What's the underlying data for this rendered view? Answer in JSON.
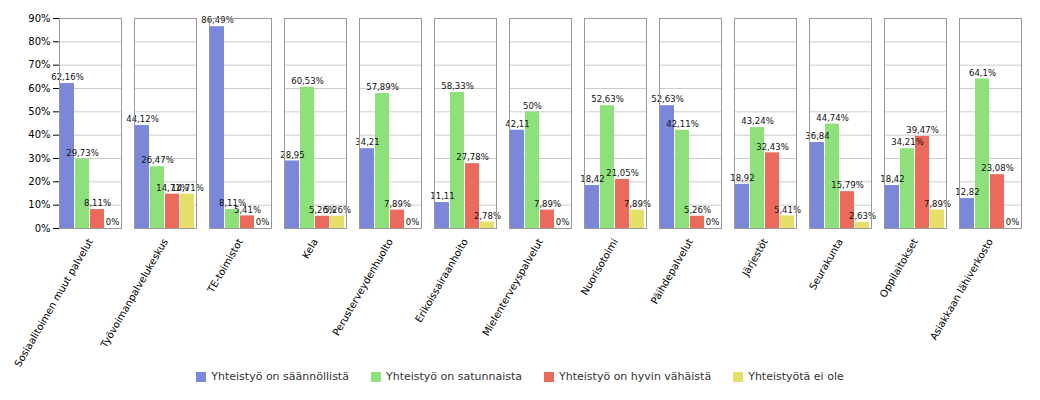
{
  "chart_data": {
    "type": "bar",
    "categories": [
      "Sosiaalitoimen muut palvelut",
      "Työvoimanpalvelukeskus",
      "TE-toimistot",
      "Kela",
      "Perusterveydenhuolto",
      "Erikoissairaanhoito",
      "Mielenterveyspalvelut",
      "Nuorisotoimi",
      "Päihdepalvelut",
      "Järjestöt",
      "Seurakunta",
      "Oppilaitokset",
      "Asiakkaan lähiverkosto"
    ],
    "series": [
      {
        "name": "Yhteistyö on säännöllistä",
        "color": "#7b88da",
        "values": [
          62.16,
          44.12,
          86.49,
          28.95,
          34.21,
          11.11,
          42.11,
          18.42,
          52.63,
          18.92,
          36.84,
          18.42,
          12.82
        ],
        "value_labels": [
          "62,16%",
          "44,12%",
          "86,49%",
          "28,95",
          "34,21",
          "11,11",
          "42,11",
          "18,42",
          "52,63%",
          "18,92",
          "36,84",
          "18,42",
          "12,82"
        ]
      },
      {
        "name": "Yhteistyö on satunnaista",
        "color": "#8ee07a",
        "values": [
          29.73,
          26.47,
          8.11,
          60.53,
          57.89,
          58.33,
          50,
          52.63,
          42.11,
          43.24,
          44.74,
          34.21,
          64.1
        ],
        "value_labels": [
          "29,73%",
          "26,47%",
          "8,11%",
          "60,53%",
          "57,89%",
          "58,33%",
          "50%",
          "52,63%",
          "42,11%",
          "43,24%",
          "44,74%",
          "34,21%",
          "64,1%"
        ]
      },
      {
        "name": "Yhteistyö on hyvin vähäistä",
        "color": "#ec6a5c",
        "values": [
          8.11,
          14.71,
          5.41,
          5.26,
          7.89,
          27.78,
          7.89,
          21.05,
          5.26,
          32.43,
          15.79,
          39.47,
          23.08
        ],
        "value_labels": [
          "8,11%",
          "14,71%",
          "5,41%",
          "5,26%",
          "7,89%",
          "27,78%",
          "7,89%",
          "21,05%",
          "5,26%",
          "32,43%",
          "15,79%",
          "39,47%",
          "23,08%"
        ]
      },
      {
        "name": "Yhteistyötä ei ole",
        "color": "#e6e06a",
        "values": [
          0,
          14.71,
          0,
          5.26,
          0,
          2.78,
          0,
          7.89,
          0,
          5.41,
          2.63,
          7.89,
          0
        ],
        "value_labels": [
          "0%",
          "14,71%",
          "0%",
          "5,26%",
          "0%",
          "2,78%",
          "0%",
          "7,89%",
          "0%",
          "5,41%",
          "2,63%",
          "7,89%",
          "0%"
        ]
      }
    ],
    "ylim": [
      0,
      90
    ],
    "yticks": [
      {
        "value": 0,
        "label": "0%"
      },
      {
        "value": 10,
        "label": "10%"
      },
      {
        "value": 20,
        "label": "20%"
      },
      {
        "value": 30,
        "label": "30%"
      },
      {
        "value": 40,
        "label": "40%"
      },
      {
        "value": 50,
        "label": "50%"
      },
      {
        "value": 60,
        "label": "60%"
      },
      {
        "value": 70,
        "label": "70%"
      },
      {
        "value": 80,
        "label": "80%"
      },
      {
        "value": 90,
        "label": "90%"
      }
    ],
    "grid": true,
    "legend": "bottom",
    "data_labels": true
  }
}
